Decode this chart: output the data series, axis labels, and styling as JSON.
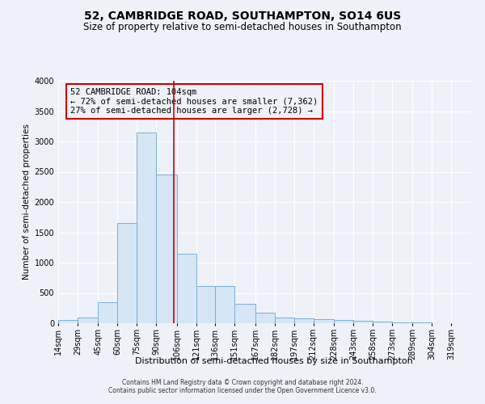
{
  "title": "52, CAMBRIDGE ROAD, SOUTHAMPTON, SO14 6US",
  "subtitle": "Size of property relative to semi-detached houses in Southampton",
  "xlabel": "Distribution of semi-detached houses by size in Southampton",
  "ylabel": "Number of semi-detached properties",
  "footer1": "Contains HM Land Registry data © Crown copyright and database right 2024.",
  "footer2": "Contains public sector information licensed under the Open Government Licence v3.0.",
  "bar_color": "#d6e6f5",
  "bar_edge_color": "#7aafd4",
  "annotation_box_color": "#cc0000",
  "vline_color": "#cc0000",
  "annotation_text1": "52 CAMBRIDGE ROAD: 104sqm",
  "annotation_text2": "← 72% of semi-detached houses are smaller (7,362)",
  "annotation_text3": "27% of semi-detached houses are larger (2,728) →",
  "property_size": 104,
  "categories": [
    "14sqm",
    "29sqm",
    "45sqm",
    "60sqm",
    "75sqm",
    "90sqm",
    "106sqm",
    "121sqm",
    "136sqm",
    "151sqm",
    "167sqm",
    "182sqm",
    "197sqm",
    "212sqm",
    "228sqm",
    "243sqm",
    "258sqm",
    "273sqm",
    "289sqm",
    "304sqm",
    "319sqm"
  ],
  "bin_edges": [
    14,
    29,
    45,
    60,
    75,
    90,
    106,
    121,
    136,
    151,
    167,
    182,
    197,
    212,
    228,
    243,
    258,
    273,
    289,
    304,
    319,
    334
  ],
  "values": [
    50,
    100,
    350,
    1650,
    3150,
    2450,
    1150,
    620,
    620,
    320,
    170,
    100,
    75,
    65,
    52,
    42,
    30,
    20,
    12,
    5,
    3
  ],
  "ylim": [
    0,
    4000
  ],
  "yticks": [
    0,
    500,
    1000,
    1500,
    2000,
    2500,
    3000,
    3500,
    4000
  ],
  "background_color": "#eef2f8",
  "plot_bg_color": "#eef2f8",
  "grid_color": "#ffffff",
  "title_fontsize": 10,
  "subtitle_fontsize": 8.5,
  "tick_fontsize": 7,
  "ylabel_fontsize": 7.5,
  "xlabel_fontsize": 8,
  "footer_fontsize": 5.5,
  "annotation_fontsize": 7.5
}
